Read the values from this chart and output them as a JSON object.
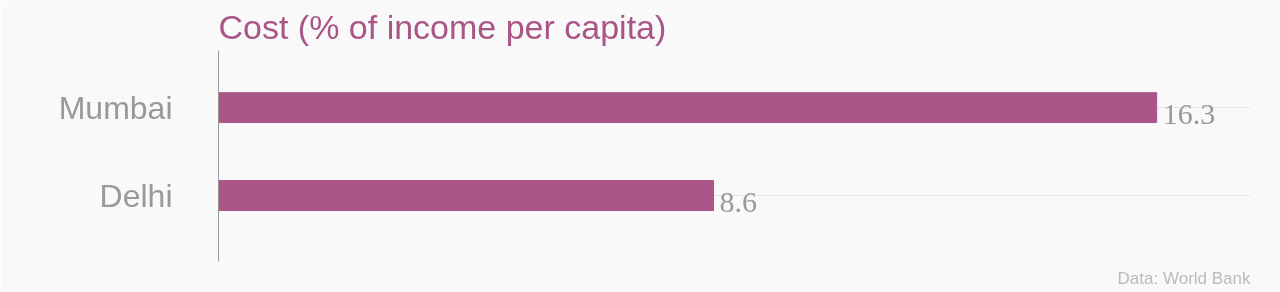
{
  "chart_data": {
    "type": "bar",
    "orientation": "horizontal",
    "title": "Cost (% of income per capita)",
    "categories": [
      "Mumbai",
      "Delhi"
    ],
    "values": [
      16.3,
      8.6
    ],
    "color": "#a95586",
    "data_labels": true,
    "grid": "y",
    "annotations": [
      "Data: World Bank"
    ]
  }
}
